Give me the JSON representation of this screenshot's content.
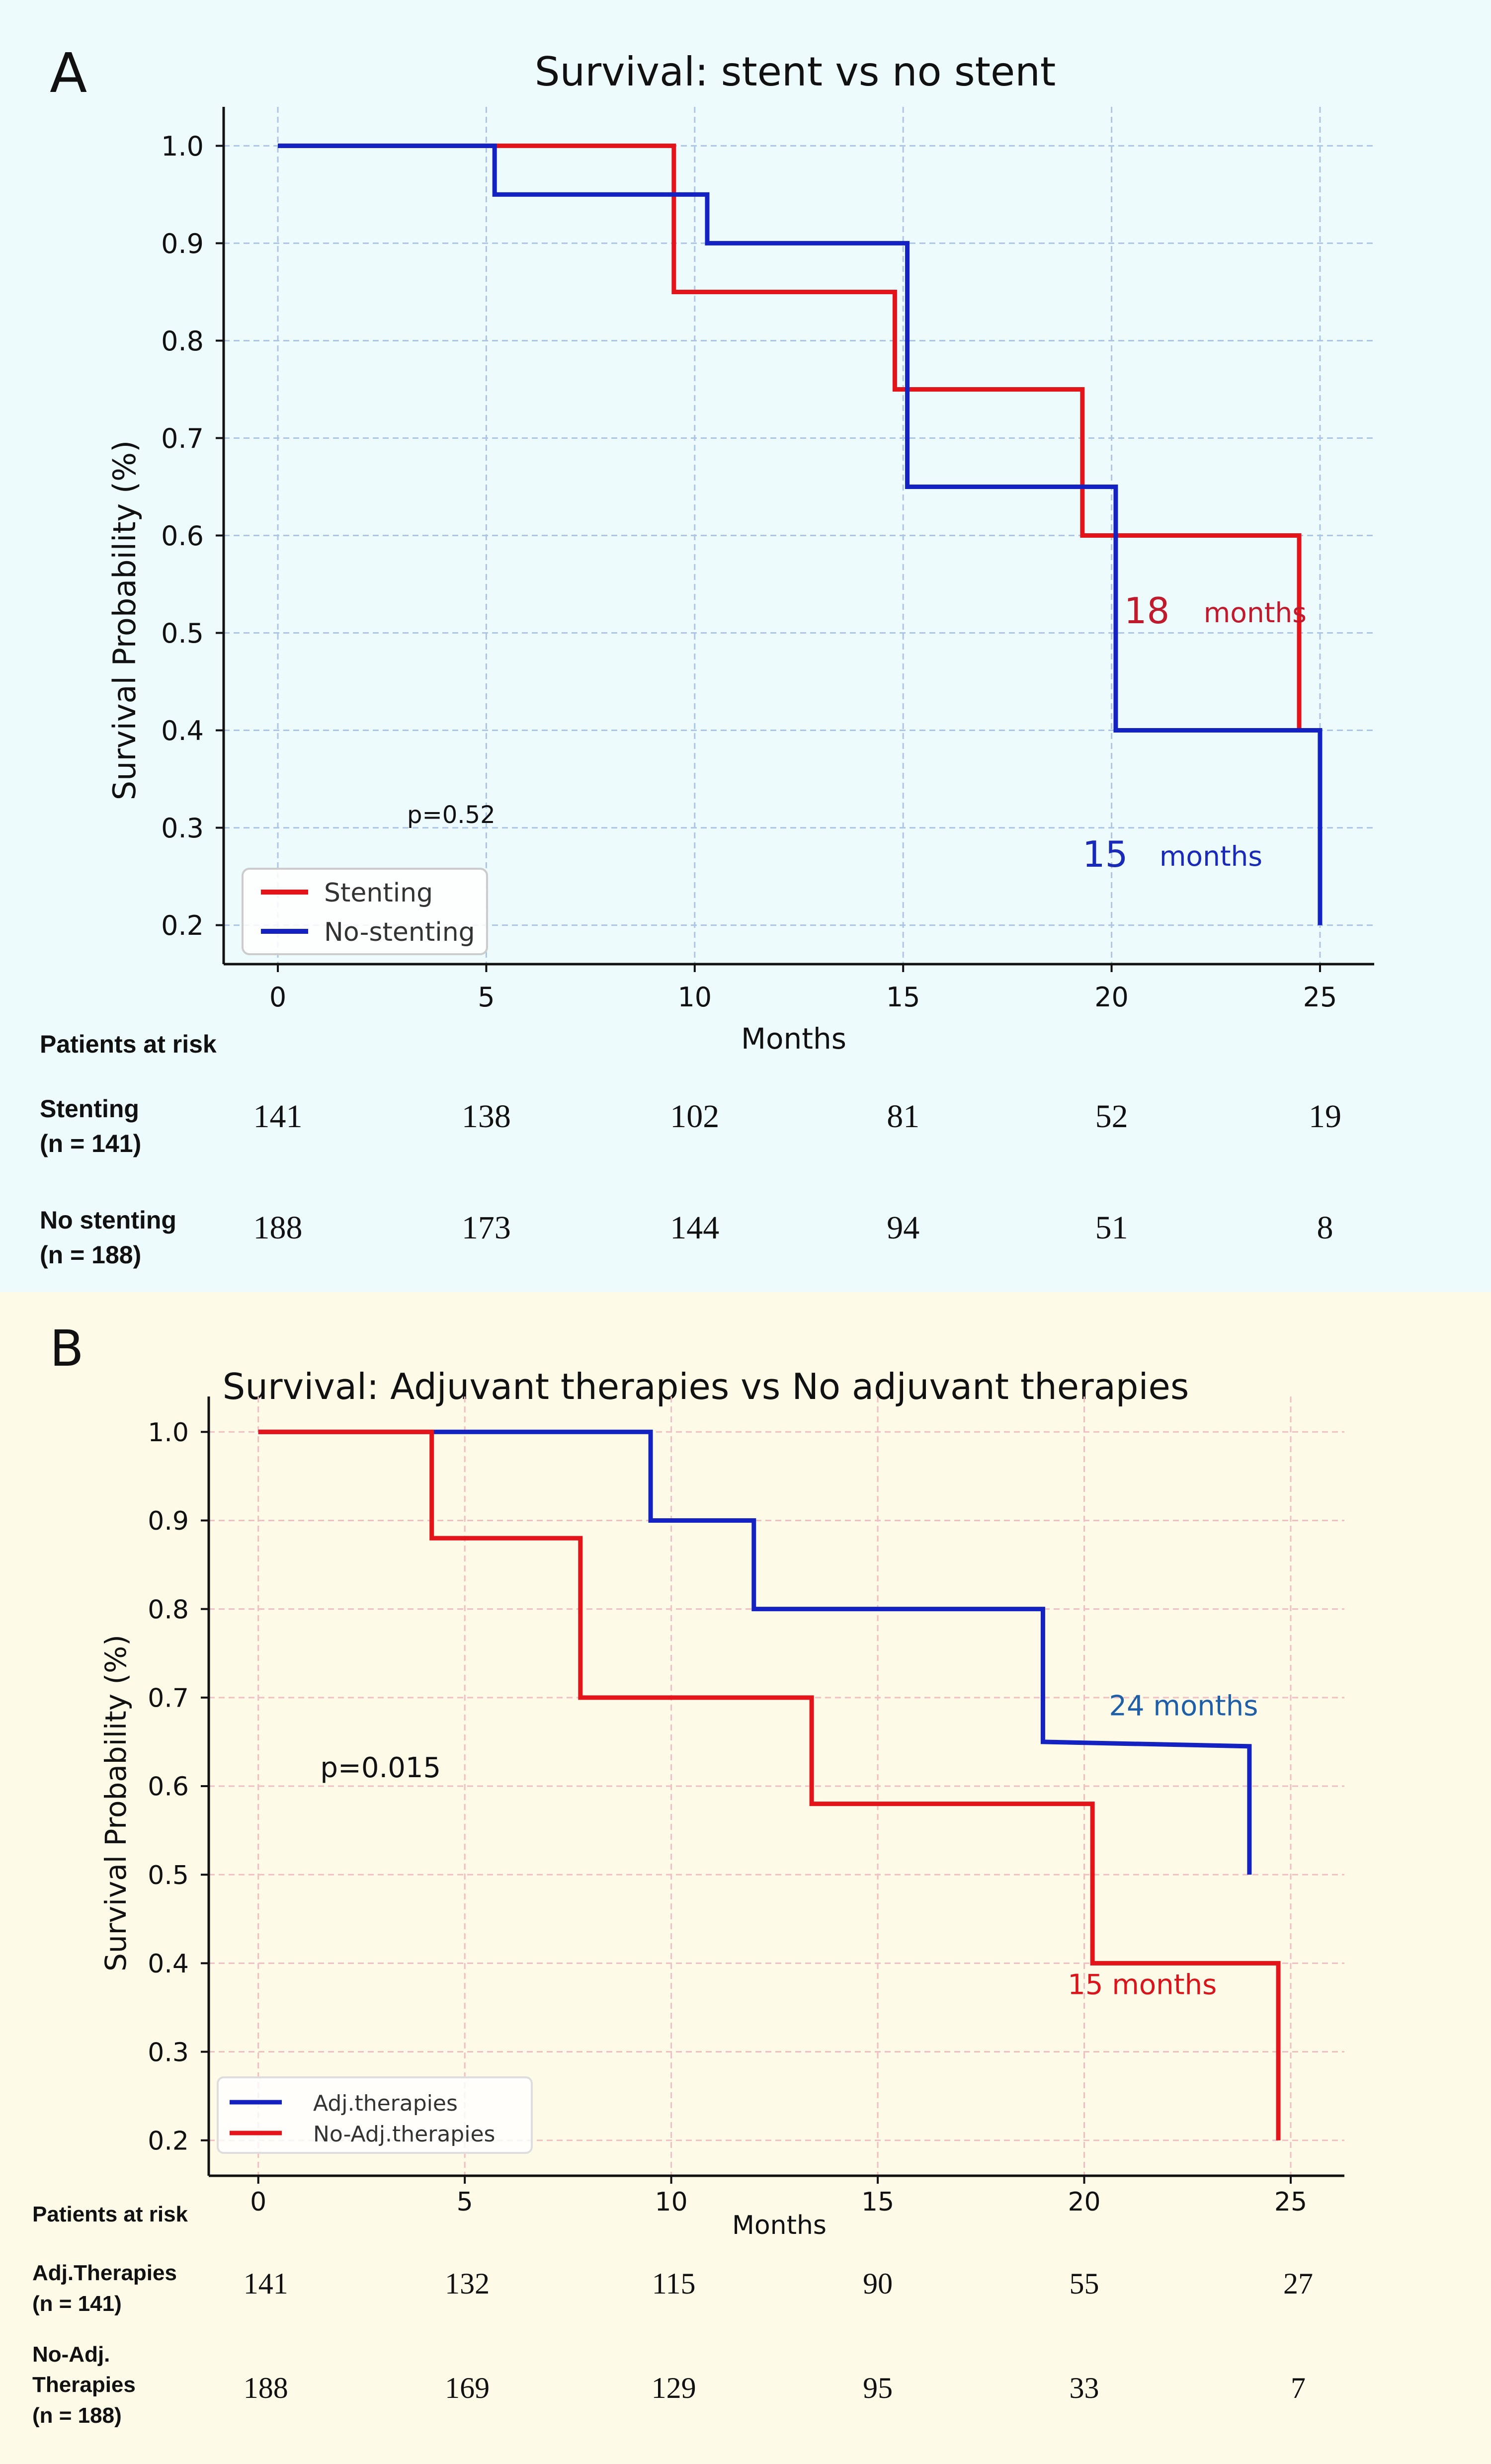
{
  "chart_data": [
    {
      "panel_letter": "A",
      "type": "line",
      "step": true,
      "title": "Survival: stent vs no stent",
      "xlabel": "Months",
      "ylabel": "Survival Probability (%)",
      "xlim": [
        -1.3,
        26.3
      ],
      "ylim": [
        0.16,
        1.04
      ],
      "xticks": [
        0,
        5,
        10,
        15,
        20,
        25
      ],
      "yticks": [
        0.2,
        0.3,
        0.4,
        0.5,
        0.6,
        0.7,
        0.8,
        0.9,
        1.0
      ],
      "ytick_labels": [
        "0.2",
        "0.3",
        "0.4",
        "0.5",
        "0.6",
        "0.7",
        "0.8",
        "0.9",
        "1.0"
      ],
      "grid": true,
      "background": "#edfbfd",
      "grid_color": "#aec6e6",
      "legend_position": "bottom-left",
      "series": [
        {
          "name": "Stenting",
          "color": "#e4141b",
          "x": [
            0,
            9.5,
            9.5,
            14.8,
            14.8,
            19.3,
            19.3,
            24.5,
            24.5
          ],
          "y": [
            1.0,
            1.0,
            0.85,
            0.85,
            0.75,
            0.75,
            0.6,
            0.6,
            0.4
          ]
        },
        {
          "name": "No-stenting",
          "color": "#1322c0",
          "x": [
            0,
            5.2,
            5.2,
            10.3,
            10.3,
            15.1,
            15.1,
            20.1,
            20.1,
            25,
            25
          ],
          "y": [
            1.0,
            1.0,
            0.95,
            0.95,
            0.9,
            0.9,
            0.65,
            0.65,
            0.4,
            0.4,
            0.2
          ]
        }
      ],
      "annotations": [
        {
          "kind": "pvalue",
          "text": "p=0.52",
          "x": 3.1,
          "y": 0.305,
          "color": "#111111"
        },
        {
          "kind": "median",
          "num": "18",
          "text": "months",
          "x": 20.3,
          "y": 0.51,
          "color": "#c01a2c"
        },
        {
          "kind": "median",
          "num": "15",
          "text": "months",
          "x": 19.3,
          "y": 0.26,
          "color": "#1a2ab8"
        }
      ],
      "risk_table": {
        "header": "Patients at risk",
        "rows": [
          {
            "label_line1": "Stenting",
            "label_line2": "(n = 141)",
            "values": [
              "141",
              "138",
              "102",
              "81",
              "52",
              "19"
            ]
          },
          {
            "label_line1": "No stenting",
            "label_line2": "(n = 188)",
            "values": [
              "188",
              "173",
              "144",
              "94",
              "51",
              "8"
            ]
          }
        ]
      }
    },
    {
      "panel_letter": "B",
      "type": "line",
      "step": true,
      "title": "Survival: Adjuvant therapies vs No adjuvant therapies",
      "xlabel": "Months",
      "ylabel": "Survival Probability (%)",
      "xlim": [
        -1.2,
        26.3
      ],
      "ylim": [
        0.16,
        1.04
      ],
      "xticks": [
        0,
        5,
        10,
        15,
        20,
        25
      ],
      "yticks": [
        0.2,
        0.3,
        0.4,
        0.5,
        0.6,
        0.7,
        0.8,
        0.9,
        1.0
      ],
      "ytick_labels": [
        "0.2",
        "0.3",
        "0.4",
        "0.5",
        "0.6",
        "0.7",
        "0.8",
        "0.9",
        "1.0"
      ],
      "grid": true,
      "background": "#fdfbe8",
      "grid_color": "#efbfc3",
      "legend_position": "bottom-left",
      "series": [
        {
          "name": "Adj.therapies",
          "color": "#1322c0",
          "x": [
            0,
            9.5,
            9.5,
            12,
            12,
            19,
            19,
            24,
            24
          ],
          "y": [
            1.0,
            1.0,
            0.9,
            0.9,
            0.8,
            0.8,
            0.65,
            0.645,
            0.5
          ]
        },
        {
          "name": "No-Adj.therapies",
          "color": "#e4141b",
          "x": [
            0,
            4.2,
            4.2,
            7.8,
            7.8,
            13.4,
            13.4,
            20.2,
            20.2,
            24.7,
            24.7
          ],
          "y": [
            1.0,
            1.0,
            0.88,
            0.88,
            0.7,
            0.7,
            0.58,
            0.58,
            0.4,
            0.4,
            0.2
          ]
        }
      ],
      "annotations": [
        {
          "kind": "pvalue",
          "text": "p=0.015",
          "x": 1.5,
          "y": 0.61,
          "color": "#111111"
        },
        {
          "kind": "median",
          "num": "",
          "text": "24 months",
          "x": 20.6,
          "y": 0.68,
          "color": "#1f5fa8"
        },
        {
          "kind": "median",
          "num": "",
          "text": "15 months",
          "x": 19.6,
          "y": 0.365,
          "color": "#d9141b"
        }
      ],
      "risk_table": {
        "header": "Patients at risk",
        "rows": [
          {
            "label_line1": "Adj.Therapies",
            "label_line2": "(n = 141)",
            "values": [
              "141",
              "132",
              "115",
              "90",
              "55",
              "27"
            ]
          },
          {
            "label_line1": "No-Adj.",
            "label_line2": "Therapies",
            "label_line3": "(n = 188)",
            "values": [
              "188",
              "169",
              "129",
              "95",
              "33",
              "7"
            ]
          }
        ]
      }
    }
  ]
}
